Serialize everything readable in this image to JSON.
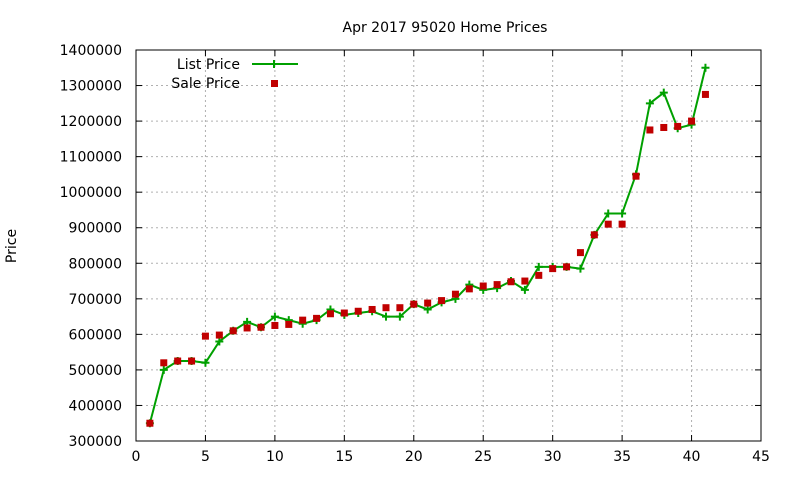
{
  "chart_data": {
    "type": "line",
    "title": "Apr 2017 95020 Home Prices",
    "xlabel": "",
    "ylabel": "Price",
    "xlim": [
      0,
      45
    ],
    "ylim": [
      300000,
      1400000
    ],
    "x_ticks": [
      0,
      5,
      10,
      15,
      20,
      25,
      30,
      35,
      40,
      45
    ],
    "y_ticks": [
      300000,
      400000,
      500000,
      600000,
      700000,
      800000,
      900000,
      1000000,
      1100000,
      1200000,
      1300000,
      1400000
    ],
    "grid": true,
    "legend_position": "top-left",
    "series": [
      {
        "name": "List Price",
        "style": "line-with-plus-markers",
        "color": "#00a000",
        "x": [
          1,
          2,
          3,
          4,
          5,
          6,
          7,
          8,
          9,
          10,
          11,
          12,
          13,
          14,
          15,
          16,
          17,
          18,
          19,
          20,
          21,
          22,
          23,
          24,
          25,
          26,
          27,
          28,
          29,
          30,
          31,
          32,
          33,
          34,
          35,
          36,
          37,
          38,
          39,
          40,
          41
        ],
        "values": [
          350000,
          500000,
          525000,
          525000,
          520000,
          580000,
          610000,
          635000,
          620000,
          650000,
          640000,
          630000,
          640000,
          670000,
          655000,
          660000,
          665000,
          650000,
          650000,
          685000,
          670000,
          690000,
          700000,
          740000,
          725000,
          730000,
          750000,
          725000,
          790000,
          790000,
          790000,
          785000,
          880000,
          940000,
          940000,
          1050000,
          1250000,
          1280000,
          1180000,
          1190000,
          1350000
        ]
      },
      {
        "name": "Sale Price",
        "style": "square-markers",
        "color": "#c00000",
        "x": [
          1,
          2,
          3,
          4,
          5,
          6,
          7,
          8,
          9,
          10,
          11,
          12,
          13,
          14,
          15,
          16,
          17,
          18,
          19,
          20,
          21,
          22,
          23,
          24,
          25,
          26,
          27,
          28,
          29,
          30,
          31,
          32,
          33,
          34,
          35,
          36,
          37,
          38,
          39,
          40,
          41
        ],
        "values": [
          350000,
          520000,
          525000,
          525000,
          595000,
          598000,
          610000,
          618000,
          620000,
          625000,
          628000,
          640000,
          645000,
          658000,
          660000,
          665000,
          670000,
          675000,
          675000,
          685000,
          688000,
          695000,
          713000,
          728000,
          736000,
          740000,
          748000,
          750000,
          766000,
          785000,
          790000,
          830000,
          880000,
          910000,
          910000,
          1045000,
          1175000,
          1182000,
          1185000,
          1200000,
          1275000
        ]
      }
    ]
  }
}
